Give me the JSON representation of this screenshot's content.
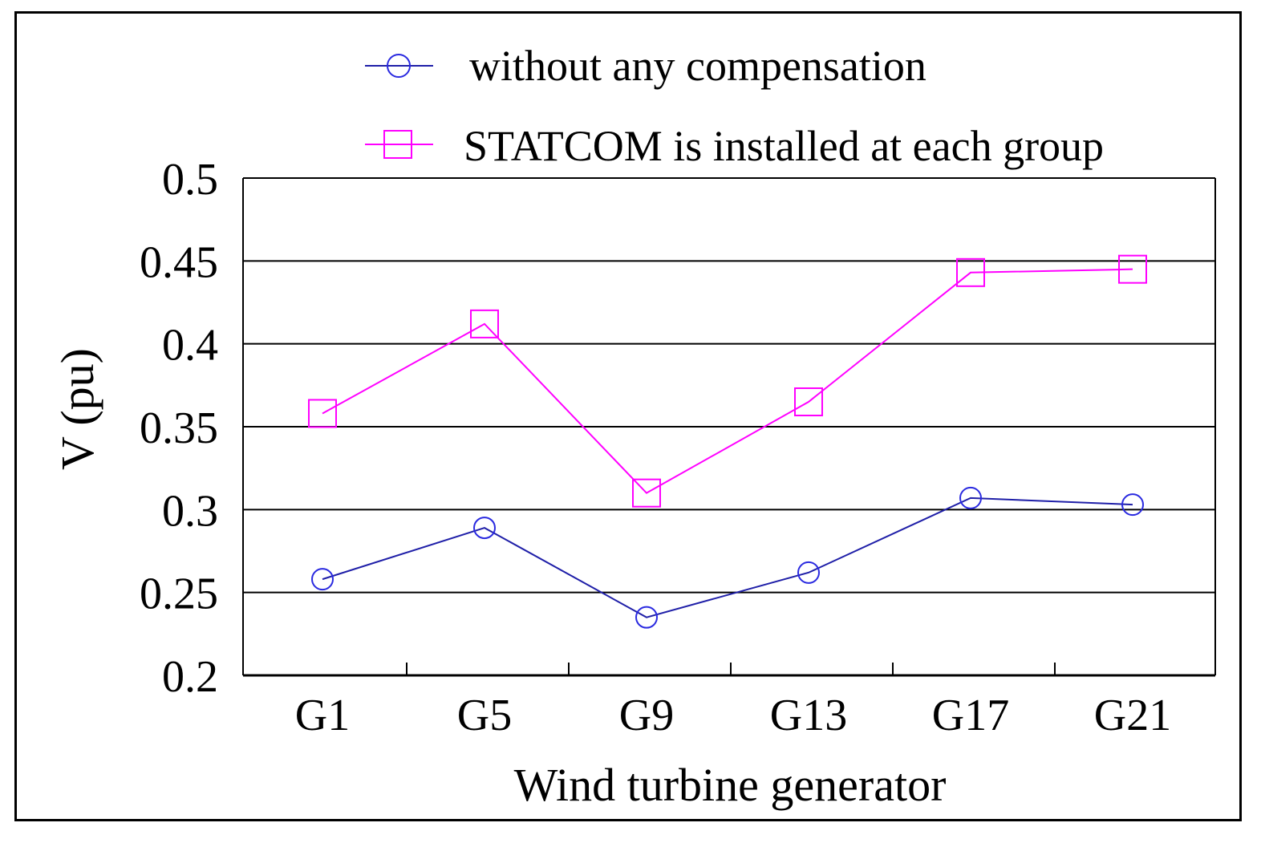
{
  "chart_data": {
    "type": "line",
    "title": "",
    "xlabel": "Wind turbine generator",
    "ylabel": "V (pu)",
    "categories": [
      "G1",
      "G5",
      "G9",
      "G13",
      "G17",
      "G21"
    ],
    "ylim": [
      0.2,
      0.5
    ],
    "yticks": [
      "0.2",
      "0.25",
      "0.3",
      "0.35",
      "0.4",
      "0.45",
      "0.5"
    ],
    "grid": true,
    "legend_position": "top",
    "series": [
      {
        "name": "without any compensation",
        "marker": "circle",
        "color": "#1f1fa8",
        "marker_color": "#2a2ae0",
        "values": [
          0.258,
          0.289,
          0.235,
          0.262,
          0.307,
          0.303
        ]
      },
      {
        "name": "STATCOM is installed at each group",
        "marker": "square",
        "color": "#ff00ff",
        "marker_color": "#ff00ff",
        "values": [
          0.358,
          0.412,
          0.31,
          0.365,
          0.443,
          0.445
        ]
      }
    ]
  }
}
